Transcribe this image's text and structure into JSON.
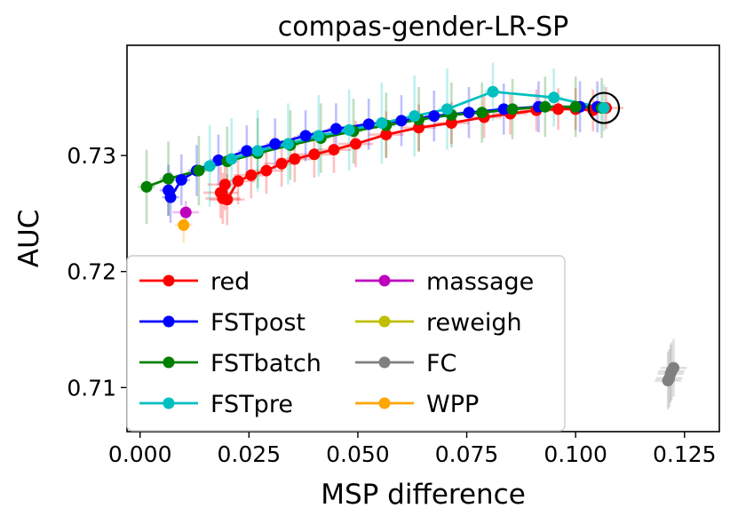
{
  "chart_data": {
    "type": "scatter",
    "title": "compas-gender-LR-SP",
    "xlabel": "MSP difference",
    "ylabel": "AUC",
    "xlim": [
      -0.003,
      0.133
    ],
    "ylim": [
      0.7062,
      0.7395
    ],
    "xticks": [
      0.0,
      0.025,
      0.05,
      0.075,
      0.1,
      0.125
    ],
    "xtick_labels": [
      "0.000",
      "0.025",
      "0.050",
      "0.075",
      "0.100",
      "0.125"
    ],
    "yticks": [
      0.71,
      0.72,
      0.73
    ],
    "ytick_labels": [
      "0.71",
      "0.72",
      "0.73"
    ],
    "legend_position": "lower-left",
    "series": [
      {
        "name": "red",
        "color": "#ff0000",
        "line": true,
        "points": [
          [
            0.0185,
            0.7268
          ],
          [
            0.019,
            0.7263
          ],
          [
            0.0195,
            0.7275
          ],
          [
            0.02,
            0.7262
          ],
          [
            0.0225,
            0.7278
          ],
          [
            0.0255,
            0.7283
          ],
          [
            0.029,
            0.7287
          ],
          [
            0.0325,
            0.7293
          ],
          [
            0.0355,
            0.7297
          ],
          [
            0.04,
            0.7301
          ],
          [
            0.0445,
            0.7305
          ],
          [
            0.0495,
            0.731
          ],
          [
            0.0565,
            0.7318
          ],
          [
            0.064,
            0.7324
          ],
          [
            0.0715,
            0.7328
          ],
          [
            0.079,
            0.7333
          ],
          [
            0.085,
            0.7336
          ],
          [
            0.091,
            0.7339
          ],
          [
            0.096,
            0.734
          ],
          [
            0.1,
            0.734
          ],
          [
            0.104,
            0.7339
          ],
          [
            0.107,
            0.7341
          ]
        ],
        "xerr": [
          0.004,
          0.004,
          0.004,
          0.004,
          0.004,
          0.004,
          0.004,
          0.004,
          0.004,
          0.004,
          0.004,
          0.004,
          0.004,
          0.004,
          0.004,
          0.004,
          0.004,
          0.004,
          0.004,
          0.004,
          0.004,
          0.004
        ],
        "yerr": [
          0.0022,
          0.0022,
          0.0022,
          0.0022,
          0.002,
          0.002,
          0.002,
          0.002,
          0.002,
          0.002,
          0.002,
          0.002,
          0.002,
          0.002,
          0.0018,
          0.0018,
          0.0018,
          0.0018,
          0.0018,
          0.0018,
          0.0018,
          0.0018
        ]
      },
      {
        "name": "FSTpost",
        "color": "#0000ff",
        "line": true,
        "points": [
          [
            0.007,
            0.7264
          ],
          [
            0.0065,
            0.727
          ],
          [
            0.0095,
            0.7279
          ],
          [
            0.013,
            0.7287
          ],
          [
            0.018,
            0.7296
          ],
          [
            0.0245,
            0.7304
          ],
          [
            0.031,
            0.731
          ],
          [
            0.038,
            0.7317
          ],
          [
            0.045,
            0.7323
          ],
          [
            0.0525,
            0.7327
          ],
          [
            0.06,
            0.733
          ],
          [
            0.0675,
            0.7334
          ],
          [
            0.0755,
            0.7337
          ],
          [
            0.0835,
            0.734
          ],
          [
            0.0915,
            0.7342
          ],
          [
            0.101,
            0.7342
          ],
          [
            0.105,
            0.7342
          ]
        ],
        "xerr": [
          0.002,
          0.002,
          0.002,
          0.002,
          0.002,
          0.002,
          0.002,
          0.002,
          0.002,
          0.002,
          0.002,
          0.002,
          0.002,
          0.002,
          0.002,
          0.002,
          0.002
        ],
        "yerr": [
          0.0022,
          0.0022,
          0.0022,
          0.0022,
          0.0022,
          0.0022,
          0.0022,
          0.0022,
          0.0022,
          0.0022,
          0.0022,
          0.0022,
          0.0022,
          0.0022,
          0.0022,
          0.0022,
          0.0022
        ]
      },
      {
        "name": "FSTbatch",
        "color": "#008000",
        "line": true,
        "points": [
          [
            0.0015,
            0.7273
          ],
          [
            0.0065,
            0.728
          ],
          [
            0.0135,
            0.7287
          ],
          [
            0.02,
            0.7295
          ],
          [
            0.027,
            0.7302
          ],
          [
            0.0345,
            0.7309
          ],
          [
            0.0415,
            0.7315
          ],
          [
            0.049,
            0.7321
          ],
          [
            0.0565,
            0.7326
          ],
          [
            0.064,
            0.7331
          ],
          [
            0.0715,
            0.7335
          ],
          [
            0.0785,
            0.7337
          ],
          [
            0.0855,
            0.734
          ],
          [
            0.093,
            0.7342
          ],
          [
            0.1,
            0.7342
          ],
          [
            0.106,
            0.7341
          ]
        ],
        "xerr": [
          0.002,
          0.002,
          0.002,
          0.002,
          0.002,
          0.002,
          0.002,
          0.002,
          0.002,
          0.002,
          0.002,
          0.002,
          0.002,
          0.002,
          0.002,
          0.002
        ],
        "yerr": [
          0.0032,
          0.0032,
          0.003,
          0.003,
          0.003,
          0.003,
          0.003,
          0.0028,
          0.0028,
          0.0028,
          0.0028,
          0.0026,
          0.0026,
          0.0026,
          0.0026,
          0.0026
        ]
      },
      {
        "name": "FSTpre",
        "color": "#00bfbf",
        "line": true,
        "points": [
          [
            0.016,
            0.7291
          ],
          [
            0.021,
            0.7297
          ],
          [
            0.027,
            0.7304
          ],
          [
            0.034,
            0.731
          ],
          [
            0.041,
            0.7317
          ],
          [
            0.048,
            0.7322
          ],
          [
            0.0555,
            0.7328
          ],
          [
            0.063,
            0.7334
          ],
          [
            0.0705,
            0.734
          ],
          [
            0.081,
            0.7355
          ],
          [
            0.095,
            0.735
          ],
          [
            0.1065,
            0.7341
          ]
        ],
        "xerr": [
          0.002,
          0.002,
          0.002,
          0.002,
          0.002,
          0.002,
          0.002,
          0.002,
          0.002,
          0.002,
          0.002,
          0.002
        ],
        "yerr": [
          0.0035,
          0.0035,
          0.0035,
          0.0035,
          0.0035,
          0.0035,
          0.0035,
          0.0035,
          0.0035,
          0.0025,
          0.0025,
          0.002
        ]
      },
      {
        "name": "massage",
        "color": "#bf00bf",
        "line": false,
        "points": [
          [
            0.0105,
            0.7251
          ]
        ],
        "xerr": [
          0.003
        ],
        "yerr": [
          0.001
        ]
      },
      {
        "name": "reweigh",
        "color": "#bfbf00",
        "line": false,
        "points": [],
        "xerr": [],
        "yerr": []
      },
      {
        "name": "FC",
        "color": "#808080",
        "line": false,
        "points": [
          [
            0.1225,
            0.7117
          ],
          [
            0.1215,
            0.7108
          ],
          [
            0.1218,
            0.7112
          ],
          [
            0.1212,
            0.7106
          ],
          [
            0.122,
            0.7114
          ]
        ],
        "xerr": [
          0.003,
          0.003,
          0.003,
          0.003,
          0.003
        ],
        "yerr": [
          0.0025,
          0.0025,
          0.0025,
          0.0025,
          0.0025
        ]
      },
      {
        "name": "WPP",
        "color": "#ffa500",
        "line": false,
        "points": [
          [
            0.01,
            0.724
          ]
        ],
        "xerr": [
          0.002
        ],
        "yerr": [
          0.0015
        ]
      }
    ],
    "highlight_circle": [
      0.1065,
      0.7341
    ]
  }
}
